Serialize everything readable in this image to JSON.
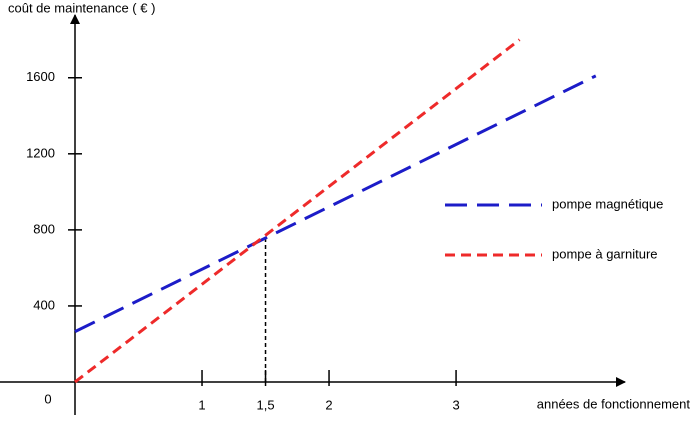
{
  "chart_data": {
    "type": "line",
    "y_label": "coût de maintenance ( € )",
    "x_label": "années de fonctionnement",
    "origin_label": "0",
    "xlim": [
      0,
      4.33
    ],
    "ylim": [
      0,
      1930
    ],
    "xticks": [
      1,
      {
        "value": 1.5,
        "label": "1,5"
      },
      2,
      3
    ],
    "yticks": [
      400,
      800,
      1200,
      1600
    ],
    "marker_x": 1.5,
    "series": [
      {
        "name": "pompe magnétique",
        "color": "#1c1cc8",
        "x": [
          0,
          4.1
        ],
        "values": [
          265,
          1610
        ]
      },
      {
        "name": "pompe à garniture",
        "color": "#ee2a2a",
        "x": [
          0,
          3.5
        ],
        "values": [
          0,
          1800
        ]
      }
    ]
  }
}
